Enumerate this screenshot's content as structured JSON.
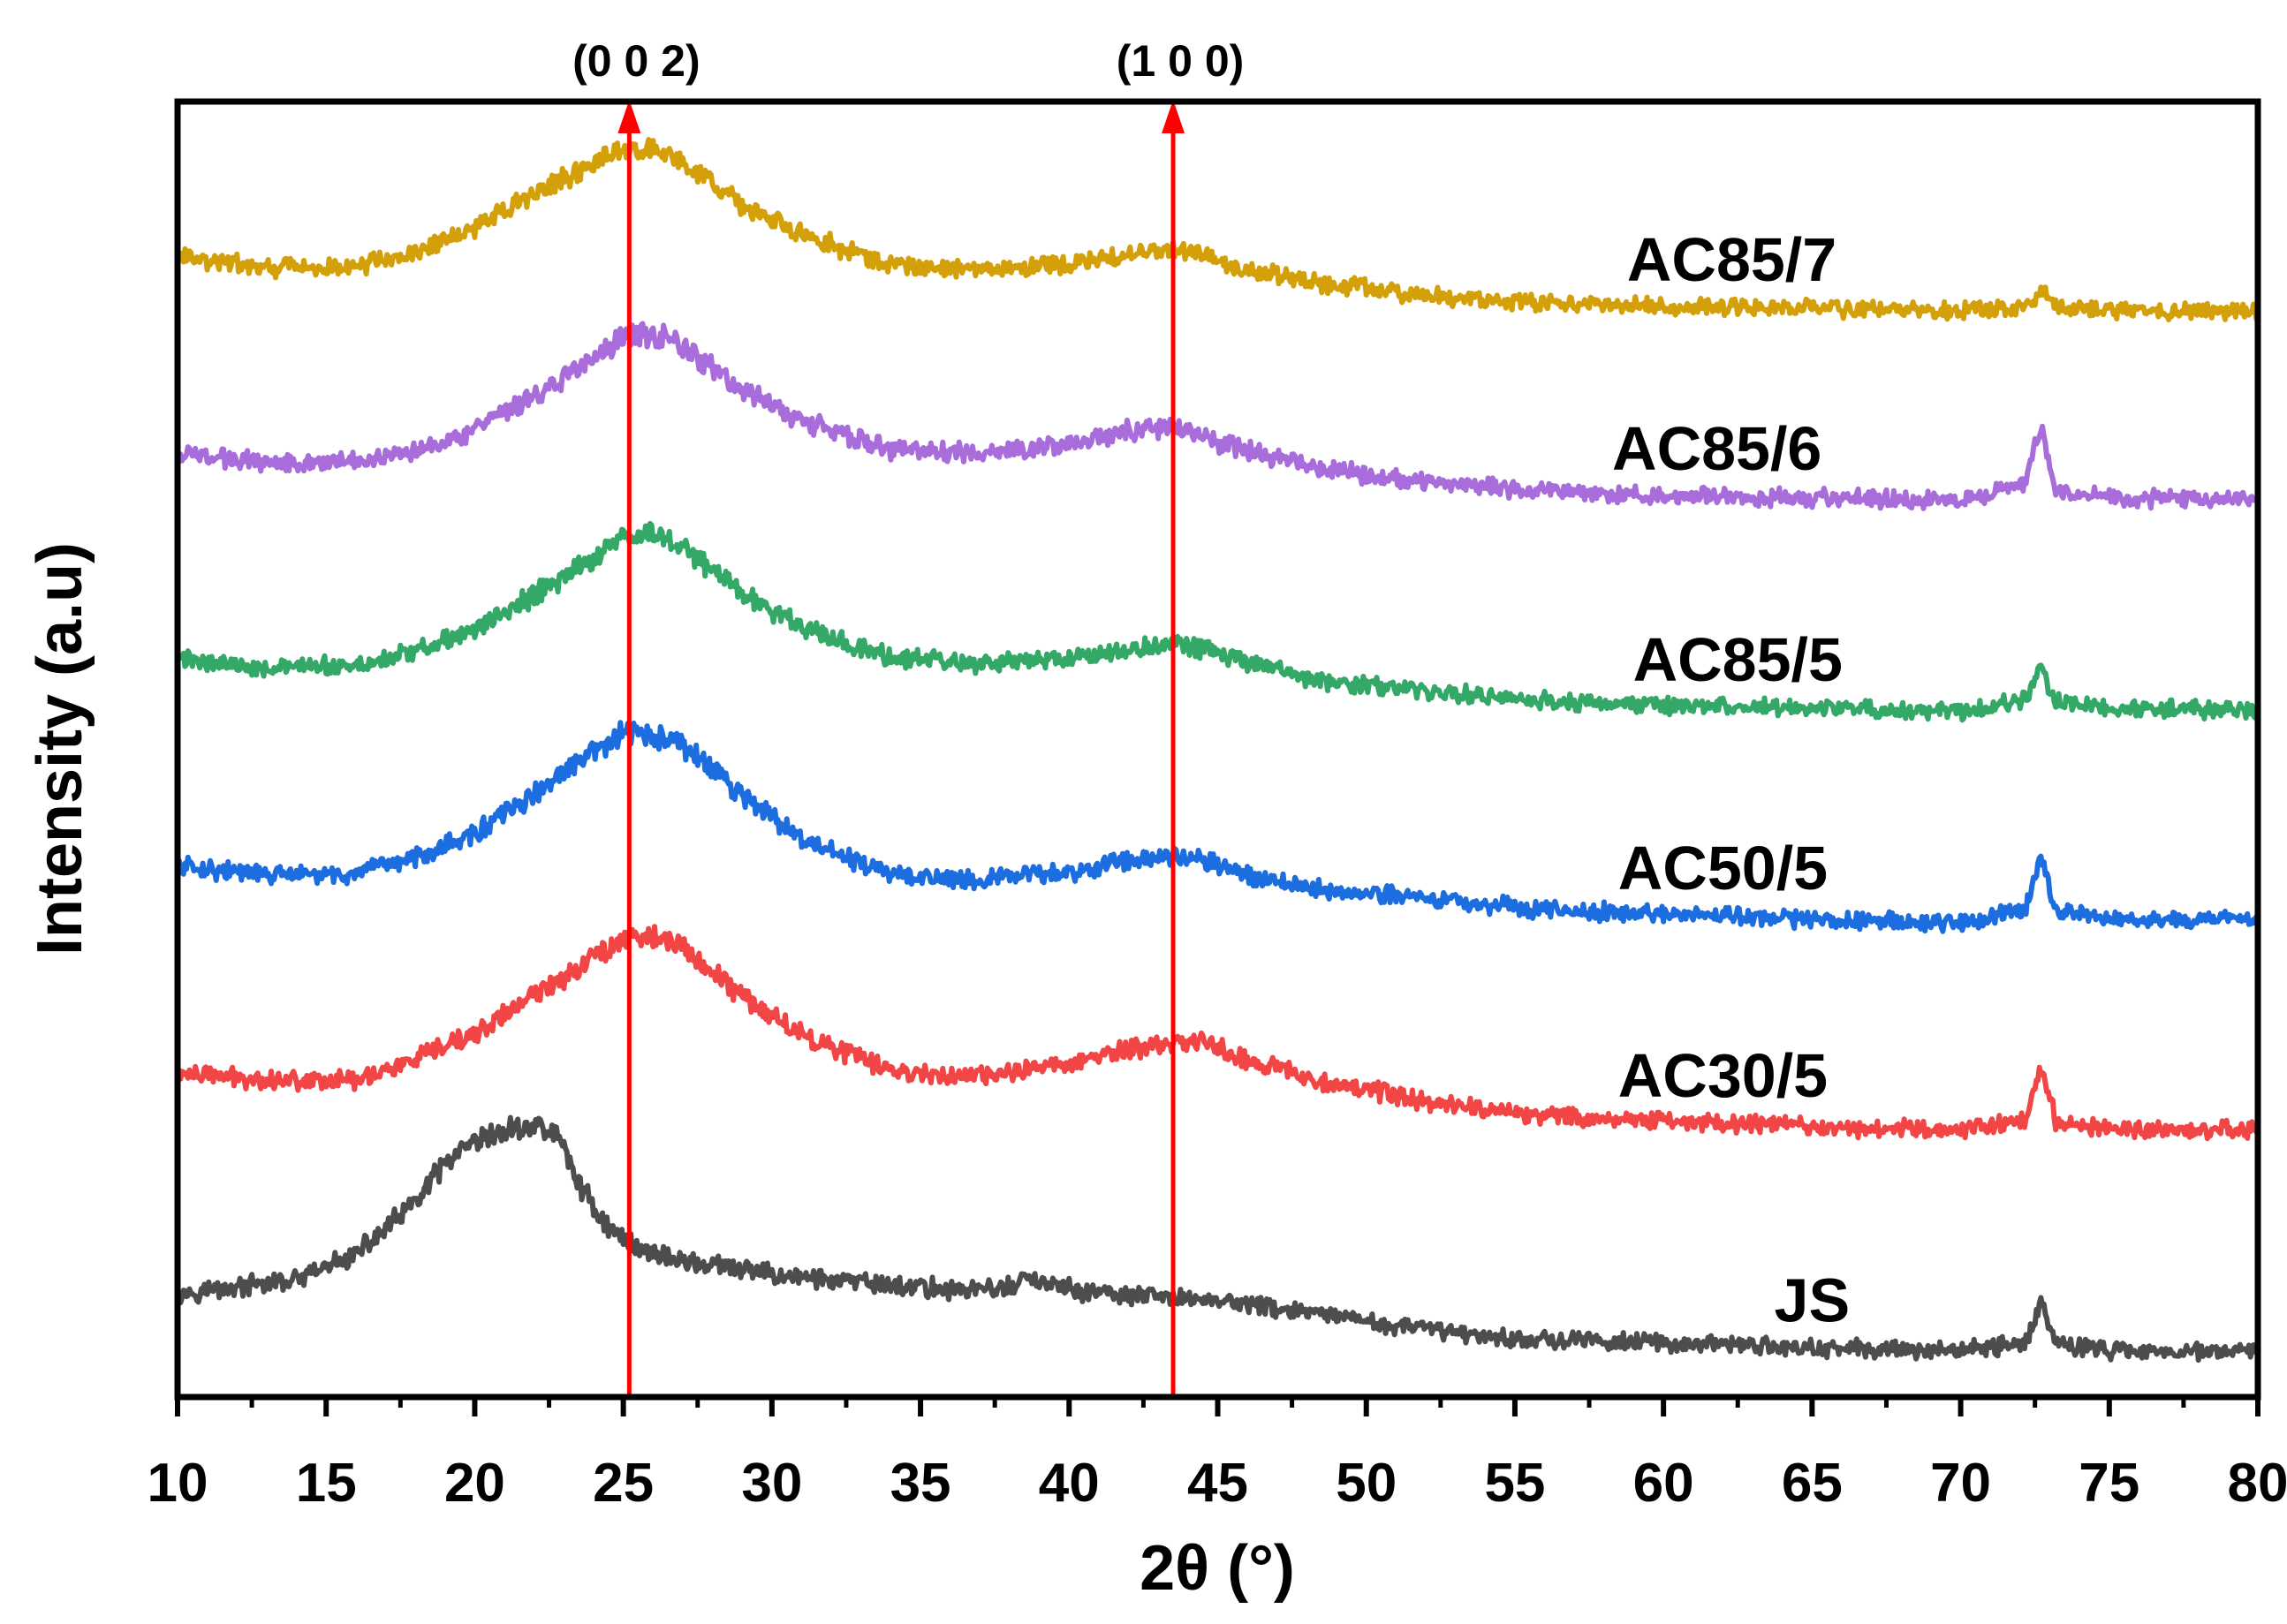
{
  "chart_data": {
    "type": "line",
    "title": "",
    "xlabel": "2θ (°)",
    "ylabel": "Intensity (a.u)",
    "xlim": [
      10,
      80
    ],
    "ylim": [
      0,
      100
    ],
    "y_ticks_shown": false,
    "grid": false,
    "x_ticks": [
      "10",
      "15",
      "20",
      "25",
      "30",
      "35",
      "40",
      "45",
      "50",
      "55",
      "60",
      "65",
      "70",
      "75",
      "80"
    ],
    "reference_lines": [
      {
        "label": "(0 0 2)",
        "x": 25.2,
        "color": "#ff0000"
      },
      {
        "label": "(1 0 0)",
        "x": 43.5,
        "color": "#ff0000"
      }
    ],
    "series": [
      {
        "name": "JS",
        "color": "#4d4d4d",
        "label_x": 65,
        "x": [
          10,
          12,
          14,
          16,
          18,
          19,
          20,
          21,
          22,
          22.8,
          23.5,
          24.5,
          25.5,
          27,
          30,
          33,
          36,
          38,
          38.5,
          40,
          42,
          45,
          48,
          50,
          55,
          60,
          65,
          70,
          72.2,
          72.7,
          73.2,
          75,
          80
        ],
        "values": [
          8,
          8.5,
          9,
          11,
          15,
          18,
          19.5,
          20.5,
          21,
          20.2,
          16.5,
          13,
          11.5,
          10.5,
          9.5,
          8.8,
          8.3,
          8.4,
          9.2,
          8.3,
          7.8,
          7.5,
          6.5,
          5.8,
          4.5,
          4.2,
          3.8,
          3.6,
          4.2,
          7.5,
          4.2,
          3.6,
          3.5
        ]
      },
      {
        "name": "AC30/5",
        "color": "#f24545",
        "label_x": 62,
        "x": [
          10,
          13,
          16,
          18,
          20,
          22,
          24,
          25,
          26,
          27,
          29,
          31,
          34,
          37,
          40,
          42,
          43.5,
          44.5,
          45.5,
          48,
          52,
          56,
          60,
          65,
          70,
          72.2,
          72.7,
          73.2,
          75,
          80
        ],
        "values": [
          25,
          24.5,
          24.5,
          26,
          28,
          31,
          34,
          35.5,
          35.6,
          34.7,
          31,
          28,
          25.2,
          24.7,
          25.8,
          26.8,
          27.3,
          27.6,
          26.4,
          24.7,
          22.8,
          21.7,
          21.3,
          20.9,
          20.6,
          21.5,
          25.5,
          21.3,
          20.7,
          20.6
        ]
      },
      {
        "name": "AC50/5",
        "color": "#1c6ee0",
        "label_x": 62,
        "x": [
          10,
          13,
          16,
          18,
          20,
          22,
          24,
          25,
          26,
          27,
          29,
          31,
          34,
          37,
          40,
          42,
          43.5,
          44.5,
          45.5,
          48,
          52,
          56,
          60,
          65,
          70,
          72.2,
          72.7,
          73.2,
          75,
          80
        ],
        "values": [
          41,
          40.3,
          40.3,
          41.7,
          43.5,
          46.5,
          49.8,
          51.2,
          51,
          50.3,
          46.5,
          43,
          40.3,
          40,
          40.5,
          41.4,
          41.9,
          41.6,
          40.6,
          39.3,
          38.5,
          37.6,
          37.3,
          36.9,
          36.6,
          37.8,
          42,
          37.6,
          36.9,
          36.9
        ]
      },
      {
        "name": "AC85/5",
        "color": "#33a867",
        "label_x": 62.5,
        "x": [
          10,
          13,
          16,
          18,
          20,
          22,
          24,
          25,
          26,
          27,
          29,
          31,
          34,
          37,
          40,
          42,
          43.5,
          44.5,
          45.5,
          48,
          52,
          56,
          60,
          65,
          70,
          72.2,
          72.7,
          73.2,
          75,
          80
        ],
        "values": [
          57,
          56.3,
          56.4,
          57.6,
          59.2,
          61.9,
          64.8,
          66.3,
          66.7,
          65.7,
          62.1,
          59.4,
          57.1,
          56.5,
          57,
          57.7,
          58.2,
          57.8,
          57,
          55.4,
          54.5,
          53.7,
          53.4,
          53.1,
          52.9,
          53.9,
          56.4,
          53.6,
          53.1,
          53.1
        ]
      },
      {
        "name": "AC85/6",
        "color": "#a86ddb",
        "label_x": 61.8,
        "x": [
          10,
          13,
          16,
          18,
          20,
          22,
          24,
          25,
          26,
          27,
          29,
          31,
          34,
          37,
          40,
          42,
          43.5,
          44.5,
          45.5,
          48,
          52,
          56,
          60,
          65,
          70,
          72.2,
          72.7,
          73.2,
          75,
          80
        ],
        "values": [
          72.8,
          72.2,
          72.2,
          73.2,
          74.6,
          77.2,
          80.2,
          81.8,
          82.2,
          81.1,
          77.7,
          75.4,
          73.1,
          72.8,
          73.6,
          74.6,
          74.8,
          74.1,
          73.4,
          71.8,
          70.6,
          69.9,
          69.6,
          69.4,
          69.2,
          70.6,
          75.2,
          70,
          69.4,
          69.2
        ]
      },
      {
        "name": "AC85/7",
        "color": "#d4a00a",
        "label_x": 62.3,
        "x": [
          10,
          13,
          16,
          18,
          20,
          22,
          24,
          25,
          26,
          27,
          29,
          31,
          34,
          37,
          40,
          42,
          43.5,
          44.5,
          45.5,
          48,
          52,
          56,
          60,
          65,
          70,
          72.2,
          72.7,
          73.2,
          75,
          80
        ],
        "values": [
          88,
          87.2,
          87.2,
          88.4,
          90.2,
          92.9,
          95.2,
          96.3,
          96.4,
          95.2,
          92.1,
          89.7,
          87.4,
          87,
          87.4,
          88.1,
          88.5,
          88.3,
          87.3,
          86.1,
          85,
          84.4,
          84.2,
          84,
          83.8,
          84.1,
          85.4,
          84.1,
          83.9,
          83.8
        ]
      }
    ]
  }
}
